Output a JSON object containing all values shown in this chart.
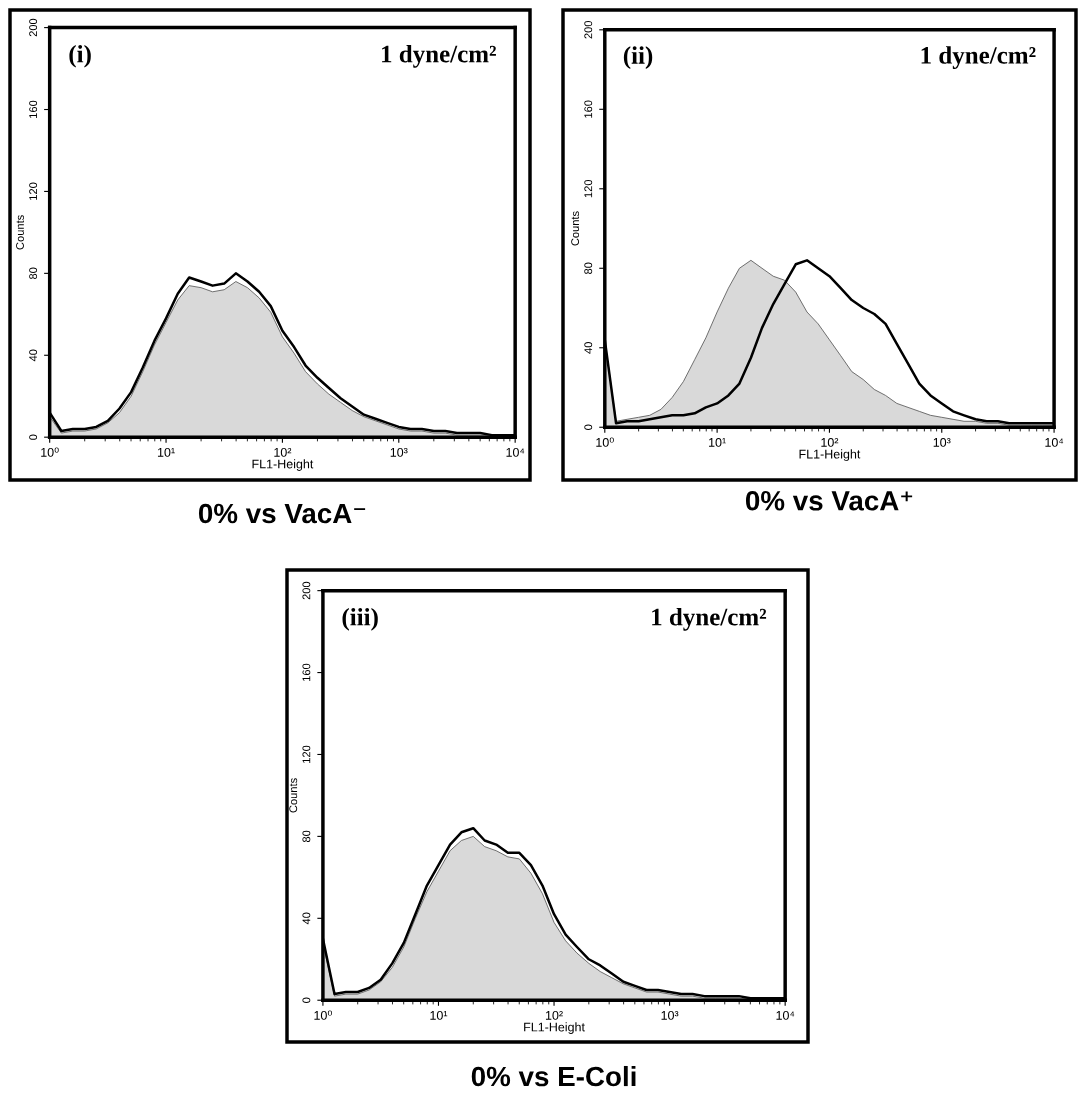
{
  "chart_data": [
    {
      "type": "area",
      "title": "0% vs VacA⁻",
      "xlabel": "FL1-Height",
      "ylabel": "Counts",
      "annotations": [
        "(i)",
        "1 dyne/cm²"
      ],
      "log": "x",
      "grid": false,
      "xlim": [
        1,
        10000
      ],
      "ylim": [
        0,
        200
      ],
      "xticks": [
        {
          "value": 1,
          "label": "10⁰"
        },
        {
          "value": 10,
          "label": "10¹"
        },
        {
          "value": 100,
          "label": "10²"
        },
        {
          "value": 1000,
          "label": "10³"
        },
        {
          "value": 10000,
          "label": "10⁴"
        }
      ],
      "yticks": [
        0,
        40,
        80,
        120,
        160,
        200
      ],
      "x": [
        1,
        1.26,
        1.58,
        2,
        2.51,
        3.16,
        3.98,
        5.01,
        6.31,
        7.94,
        10,
        12.6,
        15.8,
        20,
        25.1,
        31.6,
        39.8,
        50.1,
        63.1,
        79.4,
        100,
        126,
        158,
        200,
        251,
        316,
        398,
        501,
        631,
        794,
        1000,
        1260,
        1580,
        2000,
        2510,
        3160,
        3980,
        5010,
        6310,
        7940,
        10000
      ],
      "series": [
        {
          "type": "area",
          "color": "#d9d9d9",
          "values": [
            10,
            2,
            3,
            3,
            4,
            7,
            12,
            20,
            32,
            45,
            56,
            67,
            74,
            73,
            71,
            72,
            76,
            73,
            68,
            61,
            49,
            41,
            32,
            26,
            21,
            17,
            13,
            10,
            8,
            6,
            4,
            3,
            3,
            2,
            2,
            1,
            1,
            1,
            1,
            0,
            0
          ]
        },
        {
          "type": "line",
          "color": "#000000",
          "values": [
            12,
            3,
            4,
            4,
            5,
            8,
            14,
            22,
            34,
            47,
            58,
            70,
            78,
            76,
            74,
            75,
            80,
            76,
            71,
            64,
            52,
            44,
            35,
            29,
            24,
            19,
            15,
            11,
            9,
            7,
            5,
            4,
            4,
            3,
            3,
            2,
            2,
            2,
            1,
            1,
            1
          ]
        }
      ]
    },
    {
      "type": "area",
      "title": "0% vs VacA⁺",
      "xlabel": "FL1-Height",
      "ylabel": "Counts",
      "annotations": [
        "(ii)",
        "1 dyne/cm²"
      ],
      "log": "x",
      "grid": false,
      "xlim": [
        1,
        10000
      ],
      "ylim": [
        0,
        200
      ],
      "xticks": [
        {
          "value": 1,
          "label": "10⁰"
        },
        {
          "value": 10,
          "label": "10¹"
        },
        {
          "value": 100,
          "label": "10²"
        },
        {
          "value": 1000,
          "label": "10³"
        },
        {
          "value": 10000,
          "label": "10⁴"
        }
      ],
      "yticks": [
        0,
        40,
        80,
        120,
        160,
        200
      ],
      "x": [
        1,
        1.26,
        1.58,
        2,
        2.51,
        3.16,
        3.98,
        5.01,
        6.31,
        7.94,
        10,
        12.6,
        15.8,
        20,
        25.1,
        31.6,
        39.8,
        50.1,
        63.1,
        79.4,
        100,
        126,
        158,
        200,
        251,
        316,
        398,
        501,
        631,
        794,
        1000,
        1260,
        1580,
        2000,
        2510,
        3160,
        3980,
        5010,
        6310,
        7940,
        10000
      ],
      "series": [
        {
          "type": "area",
          "color": "#d9d9d9",
          "values": [
            44,
            3,
            4,
            5,
            6,
            9,
            15,
            23,
            34,
            45,
            58,
            70,
            80,
            84,
            80,
            76,
            74,
            68,
            58,
            52,
            44,
            36,
            28,
            24,
            19,
            16,
            12,
            10,
            8,
            6,
            5,
            4,
            3,
            3,
            2,
            2,
            1,
            1,
            1,
            1,
            1
          ]
        },
        {
          "type": "line",
          "color": "#000000",
          "values": [
            44,
            2,
            3,
            3,
            4,
            5,
            6,
            6,
            7,
            10,
            12,
            16,
            22,
            35,
            50,
            62,
            72,
            82,
            84,
            80,
            76,
            70,
            64,
            60,
            57,
            52,
            42,
            32,
            22,
            16,
            12,
            8,
            6,
            4,
            3,
            3,
            2,
            2,
            2,
            2,
            2
          ]
        }
      ]
    },
    {
      "type": "area",
      "title": "0% vs E-Coli",
      "xlabel": "FL1-Height",
      "ylabel": "Counts",
      "annotations": [
        "(iii)",
        "1 dyne/cm²"
      ],
      "log": "x",
      "grid": false,
      "xlim": [
        1,
        10000
      ],
      "ylim": [
        0,
        200
      ],
      "xticks": [
        {
          "value": 1,
          "label": "10⁰"
        },
        {
          "value": 10,
          "label": "10¹"
        },
        {
          "value": 100,
          "label": "10²"
        },
        {
          "value": 1000,
          "label": "10³"
        },
        {
          "value": 10000,
          "label": "10⁴"
        }
      ],
      "yticks": [
        0,
        40,
        80,
        120,
        160,
        200
      ],
      "x": [
        1,
        1.26,
        1.58,
        2,
        2.51,
        3.16,
        3.98,
        5.01,
        6.31,
        7.94,
        10,
        12.6,
        15.8,
        20,
        25.1,
        31.6,
        39.8,
        50.1,
        63.1,
        79.4,
        100,
        126,
        158,
        200,
        251,
        316,
        398,
        501,
        631,
        794,
        1000,
        1260,
        1580,
        2000,
        2510,
        3160,
        3980,
        5010,
        6310,
        7940,
        10000
      ],
      "series": [
        {
          "type": "area",
          "color": "#d9d9d9",
          "values": [
            28,
            2,
            3,
            3,
            5,
            9,
            16,
            26,
            40,
            53,
            63,
            73,
            78,
            80,
            75,
            73,
            70,
            69,
            62,
            52,
            38,
            29,
            23,
            18,
            14,
            11,
            8,
            6,
            4,
            4,
            3,
            2,
            2,
            1,
            1,
            1,
            1,
            1,
            0,
            0,
            0
          ]
        },
        {
          "type": "line",
          "color": "#000000",
          "values": [
            30,
            3,
            4,
            4,
            6,
            10,
            18,
            28,
            42,
            56,
            66,
            76,
            82,
            84,
            78,
            76,
            72,
            72,
            66,
            56,
            42,
            32,
            26,
            20,
            17,
            13,
            9,
            7,
            5,
            5,
            4,
            3,
            3,
            2,
            2,
            2,
            2,
            1,
            1,
            1,
            1
          ]
        }
      ]
    }
  ]
}
